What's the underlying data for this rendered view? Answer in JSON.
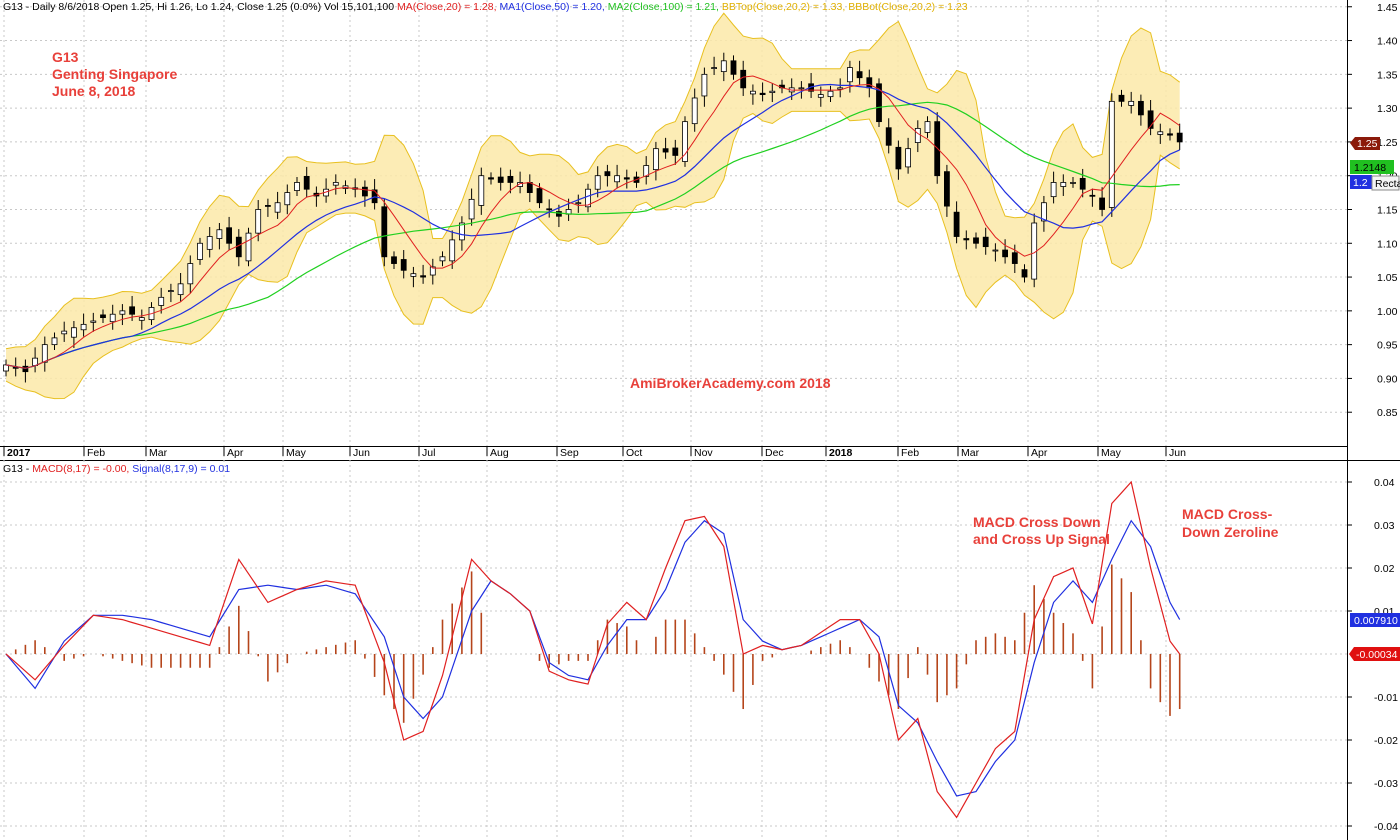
{
  "price_panel": {
    "header": {
      "prefix": "G13 - Daily 8/6/2018 Open 1.25, Hi 1.26, Lo 1.24, Close 1.25 (0.0%) Vol 15,101,100 ",
      "ma20": "MA(Close,20) = 1.28, ",
      "ma50": "MA1(Close,50) = 1.20, ",
      "ma100": "MA2(Close,100) = 1.21, ",
      "bbtop": "BBTop(Close,20,2) = 1.33, ",
      "bbbot": "BBBot(Close,20,2) = 1.23"
    },
    "title_lines": [
      "G13",
      "Genting Singapore",
      "June 8, 2018"
    ],
    "watermark": "AmiBrokerAcademy.com  2018",
    "tags": {
      "close": "1.25",
      "ma100": "1.2148",
      "ma50": "1.2",
      "tooltip": "Recta"
    }
  },
  "macd_panel": {
    "header": {
      "prefix": "G13 - ",
      "macd": "MACD(8,17) = -0.00, ",
      "signal": "Signal(8,17,9) = 0.01"
    },
    "annotations": [
      {
        "lines": [
          "MACD Cross Down",
          "and Cross Up Signal"
        ]
      },
      {
        "lines": [
          "MACD Cross-",
          "Down Zeroline"
        ]
      }
    ],
    "tags": {
      "signal": "0.007910",
      "hist": "-0.00034"
    }
  },
  "colors": {
    "ma20": "#e02020",
    "ma50": "#2030e0",
    "ma100": "#20d020",
    "bb": "#e8c020",
    "bbfill": "#fbe9a8",
    "macd": "#e02020",
    "signal": "#2030e0",
    "hist": "#b5451b",
    "note": "#e8403a",
    "up": "#ffffff",
    "down": "#000000"
  },
  "chart_data": [
    {
      "type": "candlestick",
      "series_names": [
        "MA(Close,20)",
        "MA1(Close,50)",
        "MA2(Close,100)",
        "BBTop(Close,20,2)",
        "BBBot(Close,20,2)"
      ],
      "x_tick_labels": [
        "2017",
        "Feb",
        "Mar",
        "Apr",
        "May",
        "Jun",
        "Jul",
        "Aug",
        "Sep",
        "Oct",
        "Nov",
        "Dec",
        "2018",
        "Feb",
        "Mar",
        "Apr",
        "May",
        "Jun"
      ],
      "y_tick_labels": [
        "0.85",
        "0.90",
        "0.95",
        "1.00",
        "1.05",
        "1.10",
        "1.15",
        "1.20",
        "1.25",
        "1.30",
        "1.35",
        "1.40",
        "1.45"
      ],
      "ylim": [
        0.8,
        1.46
      ],
      "close_path": [
        [
          0,
          0.92
        ],
        [
          2,
          0.91
        ],
        [
          4,
          0.95
        ],
        [
          6,
          0.97
        ],
        [
          8,
          0.98
        ],
        [
          10,
          0.99
        ],
        [
          12,
          1.0
        ],
        [
          14,
          0.99
        ],
        [
          16,
          1.02
        ],
        [
          18,
          1.04
        ],
        [
          20,
          1.1
        ],
        [
          22,
          1.12
        ],
        [
          24,
          1.08
        ],
        [
          26,
          1.15
        ],
        [
          28,
          1.16
        ],
        [
          30,
          1.19
        ],
        [
          32,
          1.17
        ],
        [
          34,
          1.19
        ],
        [
          36,
          1.18
        ],
        [
          38,
          1.16
        ],
        [
          39,
          1.08
        ],
        [
          41,
          1.06
        ],
        [
          43,
          1.05
        ],
        [
          45,
          1.08
        ],
        [
          47,
          1.13
        ],
        [
          49,
          1.2
        ],
        [
          51,
          1.19
        ],
        [
          53,
          1.19
        ],
        [
          55,
          1.16
        ],
        [
          57,
          1.14
        ],
        [
          59,
          1.16
        ],
        [
          61,
          1.2
        ],
        [
          63,
          1.2
        ],
        [
          65,
          1.19
        ],
        [
          67,
          1.24
        ],
        [
          69,
          1.23
        ],
        [
          70,
          1.28
        ],
        [
          72,
          1.35
        ],
        [
          74,
          1.37
        ],
        [
          76,
          1.33
        ],
        [
          78,
          1.32
        ],
        [
          80,
          1.33
        ],
        [
          82,
          1.33
        ],
        [
          84,
          1.32
        ],
        [
          86,
          1.33
        ],
        [
          87,
          1.36
        ],
        [
          89,
          1.33
        ],
        [
          90,
          1.28
        ],
        [
          92,
          1.21
        ],
        [
          94,
          1.27
        ],
        [
          95,
          1.28
        ],
        [
          96,
          1.2
        ],
        [
          98,
          1.11
        ],
        [
          100,
          1.1
        ],
        [
          102,
          1.09
        ],
        [
          104,
          1.07
        ],
        [
          105,
          1.05
        ],
        [
          106,
          1.13
        ],
        [
          108,
          1.19
        ],
        [
          110,
          1.19
        ],
        [
          112,
          1.17
        ],
        [
          113,
          1.15
        ],
        [
          114,
          1.31
        ],
        [
          116,
          1.31
        ],
        [
          118,
          1.27
        ],
        [
          120,
          1.26
        ],
        [
          121,
          1.25
        ]
      ],
      "macd_path": [
        [
          0,
          0.0
        ],
        [
          3,
          -0.006
        ],
        [
          6,
          0.002
        ],
        [
          9,
          0.009
        ],
        [
          12,
          0.008
        ],
        [
          15,
          0.006
        ],
        [
          18,
          0.004
        ],
        [
          21,
          0.002
        ],
        [
          24,
          0.022
        ],
        [
          27,
          0.012
        ],
        [
          30,
          0.015
        ],
        [
          33,
          0.017
        ],
        [
          36,
          0.016
        ],
        [
          39,
          -0.002
        ],
        [
          41,
          -0.02
        ],
        [
          43,
          -0.018
        ],
        [
          45,
          -0.005
        ],
        [
          48,
          0.022
        ],
        [
          50,
          0.017
        ],
        [
          52,
          0.014
        ],
        [
          54,
          0.01
        ],
        [
          56,
          -0.004
        ],
        [
          58,
          -0.006
        ],
        [
          60,
          -0.007
        ],
        [
          62,
          0.007
        ],
        [
          64,
          0.012
        ],
        [
          66,
          0.008
        ],
        [
          68,
          0.02
        ],
        [
          70,
          0.031
        ],
        [
          72,
          0.032
        ],
        [
          74,
          0.025
        ],
        [
          76,
          0.0
        ],
        [
          78,
          0.002
        ],
        [
          80,
          0.001
        ],
        [
          82,
          0.002
        ],
        [
          84,
          0.005
        ],
        [
          86,
          0.008
        ],
        [
          88,
          0.008
        ],
        [
          90,
          0.0
        ],
        [
          92,
          -0.02
        ],
        [
          94,
          -0.015
        ],
        [
          96,
          -0.032
        ],
        [
          98,
          -0.038
        ],
        [
          100,
          -0.03
        ],
        [
          102,
          -0.022
        ],
        [
          104,
          -0.018
        ],
        [
          106,
          0.008
        ],
        [
          108,
          0.018
        ],
        [
          110,
          0.02
        ],
        [
          112,
          0.007
        ],
        [
          114,
          0.035
        ],
        [
          116,
          0.04
        ],
        [
          118,
          0.02
        ],
        [
          120,
          0.003
        ],
        [
          121,
          0.0
        ]
      ],
      "signal_path": [
        [
          0,
          0.0
        ],
        [
          3,
          -0.008
        ],
        [
          6,
          0.003
        ],
        [
          9,
          0.009
        ],
        [
          12,
          0.009
        ],
        [
          15,
          0.008
        ],
        [
          18,
          0.006
        ],
        [
          21,
          0.004
        ],
        [
          24,
          0.015
        ],
        [
          27,
          0.016
        ],
        [
          30,
          0.015
        ],
        [
          33,
          0.016
        ],
        [
          36,
          0.014
        ],
        [
          39,
          0.004
        ],
        [
          41,
          -0.01
        ],
        [
          43,
          -0.015
        ],
        [
          45,
          -0.01
        ],
        [
          48,
          0.01
        ],
        [
          50,
          0.017
        ],
        [
          52,
          0.014
        ],
        [
          54,
          0.01
        ],
        [
          56,
          -0.002
        ],
        [
          58,
          -0.005
        ],
        [
          60,
          -0.006
        ],
        [
          62,
          0.002
        ],
        [
          64,
          0.008
        ],
        [
          66,
          0.008
        ],
        [
          68,
          0.015
        ],
        [
          70,
          0.026
        ],
        [
          72,
          0.031
        ],
        [
          74,
          0.028
        ],
        [
          76,
          0.008
        ],
        [
          78,
          0.003
        ],
        [
          80,
          0.001
        ],
        [
          82,
          0.002
        ],
        [
          84,
          0.004
        ],
        [
          86,
          0.006
        ],
        [
          88,
          0.008
        ],
        [
          90,
          0.004
        ],
        [
          92,
          -0.012
        ],
        [
          94,
          -0.016
        ],
        [
          96,
          -0.025
        ],
        [
          98,
          -0.033
        ],
        [
          100,
          -0.032
        ],
        [
          102,
          -0.025
        ],
        [
          104,
          -0.02
        ],
        [
          106,
          -0.002
        ],
        [
          108,
          0.012
        ],
        [
          110,
          0.017
        ],
        [
          112,
          0.012
        ],
        [
          114,
          0.022
        ],
        [
          116,
          0.031
        ],
        [
          118,
          0.025
        ],
        [
          120,
          0.012
        ],
        [
          121,
          0.008
        ]
      ],
      "yticks_macd": [
        "0.04",
        "0.03",
        "0.02",
        "0.01",
        "-0.01",
        "-0.02",
        "-0.03",
        "-0.04"
      ]
    }
  ]
}
